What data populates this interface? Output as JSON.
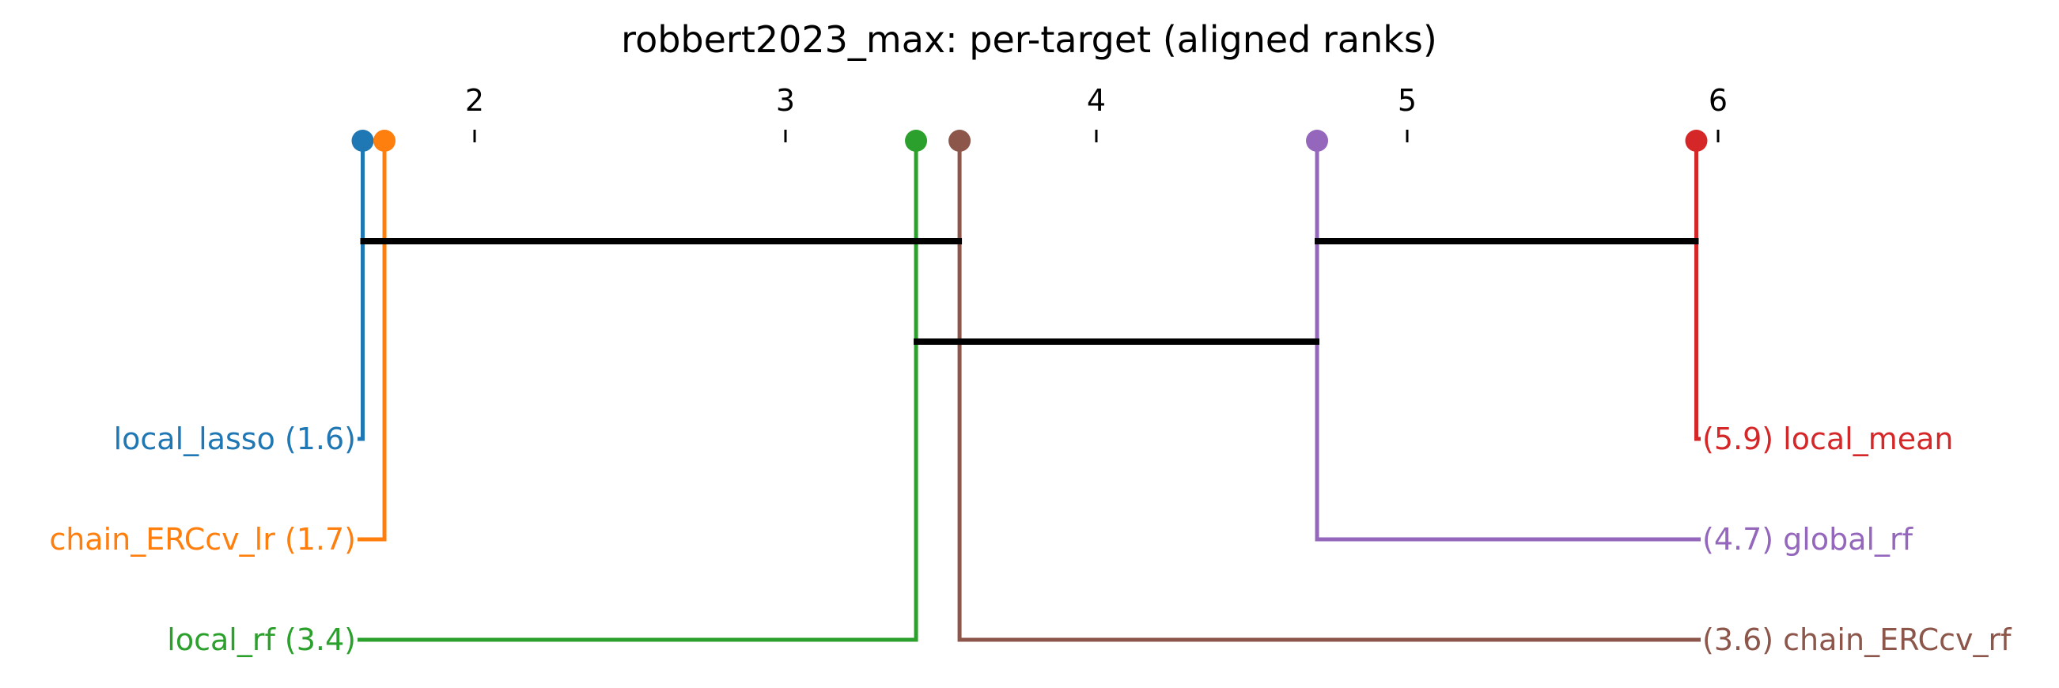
{
  "chart_data": {
    "type": "critical-difference-diagram",
    "title": "robbert2023_max: per-target (aligned ranks)",
    "axis_ticks": [
      2,
      3,
      4,
      5,
      6
    ],
    "axis_range": [
      1.64,
      5.93
    ],
    "methods": [
      {
        "name": "local_lasso",
        "rank": 1.64,
        "rank_label": "1.6",
        "color": "#1f77b4",
        "side": "left"
      },
      {
        "name": "chain_ERCcv_lr",
        "rank": 1.71,
        "rank_label": "1.7",
        "color": "#ff7f0e",
        "side": "left"
      },
      {
        "name": "local_rf",
        "rank": 3.42,
        "rank_label": "3.4",
        "color": "#2ca02c",
        "side": "left"
      },
      {
        "name": "chain_ERCcv_rf",
        "rank": 3.56,
        "rank_label": "3.6",
        "color": "#8c564b",
        "side": "right"
      },
      {
        "name": "global_rf",
        "rank": 4.71,
        "rank_label": "4.7",
        "color": "#9467bd",
        "side": "right"
      },
      {
        "name": "local_mean",
        "rank": 5.93,
        "rank_label": "5.9",
        "color": "#d62728",
        "side": "right"
      }
    ],
    "cliques": [
      {
        "from": 1.64,
        "to": 3.56
      },
      {
        "from": 4.71,
        "to": 5.93
      },
      {
        "from": 3.42,
        "to": 4.71
      }
    ],
    "clique_color": "#000000"
  }
}
